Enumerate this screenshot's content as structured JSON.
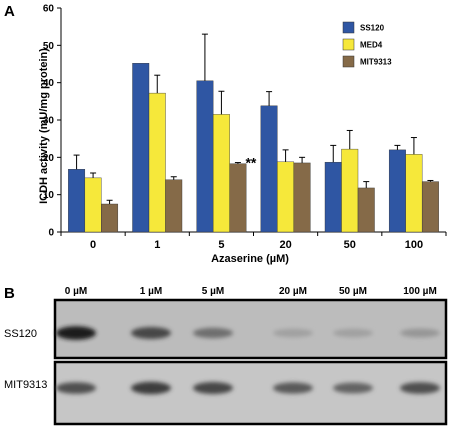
{
  "panel_a_label": "A",
  "panel_b_label": "B",
  "chart_data": {
    "type": "bar",
    "categories": [
      "0",
      "1",
      "5",
      "20",
      "50",
      "100"
    ],
    "xlabel": "Azaserine (µM)",
    "ylabel": "ICDH activity (mU/mg protein)",
    "ylim": [
      0,
      60
    ],
    "yticks": [
      0,
      10,
      20,
      30,
      40,
      50,
      60
    ],
    "grid": false,
    "legend_position": "top-right",
    "series": [
      {
        "name": "SS120",
        "color": "#2f56a3",
        "values": [
          16.8,
          45.2,
          40.5,
          33.8,
          18.7,
          22.0
        ],
        "errors": [
          3.8,
          0,
          12.5,
          3.8,
          4.5,
          1.2
        ]
      },
      {
        "name": "MED4",
        "color": "#f6e83a",
        "values": [
          14.5,
          37.2,
          31.5,
          18.8,
          22.2,
          20.8
        ],
        "errors": [
          1.3,
          4.8,
          6.2,
          3.2,
          5.0,
          4.5
        ]
      },
      {
        "name": "MIT9313",
        "color": "#856a48",
        "values": [
          7.5,
          14.0,
          18.3,
          18.5,
          11.8,
          13.5
        ],
        "errors": [
          1.0,
          0.8,
          0.3,
          1.5,
          1.7,
          0.3
        ]
      }
    ],
    "annotations": [
      {
        "text": "**",
        "category": "5",
        "series": "MIT9313"
      }
    ]
  },
  "blot": {
    "concentrations": [
      "0 µM",
      "1 µM",
      "5 µM",
      "20 µM",
      "50 µM",
      "100 µM"
    ],
    "rows": [
      {
        "label": "SS120",
        "band_intensity": [
          0.95,
          0.75,
          0.55,
          0.3,
          0.3,
          0.35
        ]
      },
      {
        "label": "MIT9313",
        "band_intensity": [
          0.7,
          0.8,
          0.75,
          0.65,
          0.6,
          0.7
        ]
      }
    ]
  }
}
